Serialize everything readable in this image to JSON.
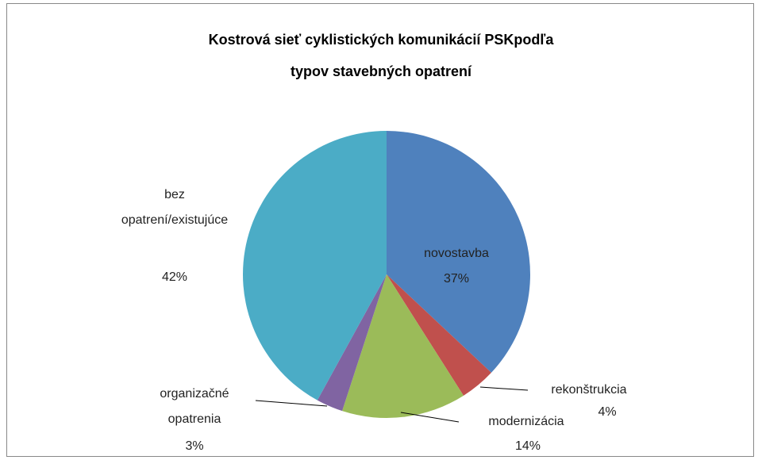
{
  "chart_data": {
    "type": "pie",
    "title": "Kostrová sieť cyklistických komunikácií  PSKpodľa typov stavebných opatrení",
    "categories": [
      "novostavba",
      "rekonštrukcia",
      "modernizácia",
      "organizačné opatrenia",
      "bez opatrení/existujúce"
    ],
    "values": [
      37,
      4,
      14,
      3,
      42
    ],
    "value_labels": [
      "37%",
      "4%",
      "14%",
      "3%",
      "42%"
    ],
    "colors": [
      "#4f81bd",
      "#c0504d",
      "#9bbb59",
      "#8064a2",
      "#4bacc6"
    ]
  }
}
